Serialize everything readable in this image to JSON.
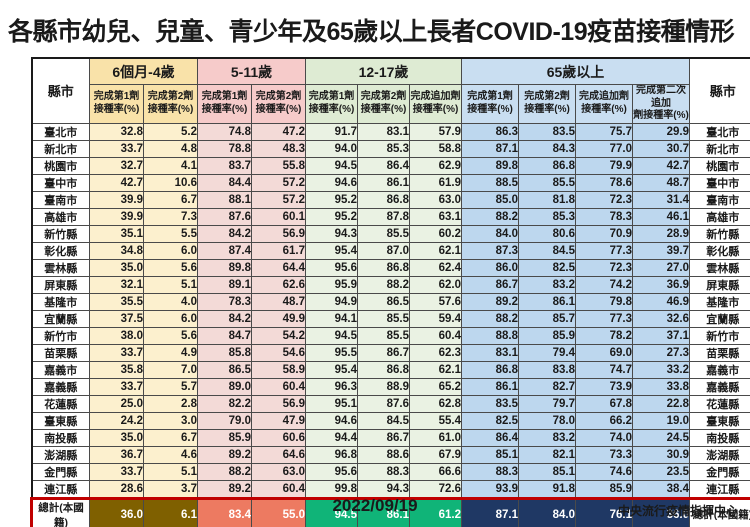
{
  "title": "各縣市幼兒、兒童、青少年及65歲以上長者COVID-19疫苗接種情形",
  "footer": {
    "date": "2022/09/19",
    "source": "中央流行疫情指揮中心"
  },
  "chart_data": {
    "type": "table",
    "title": "各縣市幼兒、兒童、青少年及65歲以上長者COVID-19疫苗接種情形",
    "corner_header": "縣市",
    "right_corner_header": "縣市",
    "col_groups": [
      {
        "label": "6個月-4歲",
        "columns": [
          "完成第1劑 接種率(%)",
          "完成第2劑 接種率(%)"
        ],
        "header_color": "#F9E2A9",
        "cell_color": "#FCF0CE",
        "total_color": "#7F6000"
      },
      {
        "label": "5-11歲",
        "columns": [
          "完成第1劑 接種率(%)",
          "完成第2劑 接種率(%)"
        ],
        "header_color": "#F6CBCA",
        "cell_color": "#F3DAD7",
        "total_color": "#ED7A61"
      },
      {
        "label": "12-17歲",
        "columns": [
          "完成第1劑 接種率(%)",
          "完成第2劑 接種率(%)",
          "完成追加劑 接種率(%)"
        ],
        "header_color": "#DEEBD3",
        "cell_color": "#EAF2E3",
        "total_color": "#10B478"
      },
      {
        "label": "65歲以上",
        "columns": [
          "完成第1劑 接種率(%)",
          "完成第2劑 接種率(%)",
          "完成追加劑 接種率(%)",
          "完成第二次追加 劑接種率(%)"
        ],
        "header_color": "#C9DEF1",
        "cell_color": "#BDD7EE",
        "total_color": "#1F3864"
      }
    ],
    "rows": [
      {
        "county": "臺北市",
        "values": [
          "32.8",
          "5.2",
          "74.8",
          "47.2",
          "91.7",
          "83.1",
          "57.9",
          "86.3",
          "83.5",
          "75.7",
          "29.9"
        ]
      },
      {
        "county": "新北市",
        "values": [
          "33.7",
          "4.8",
          "78.8",
          "48.3",
          "94.0",
          "85.3",
          "58.8",
          "87.1",
          "84.3",
          "77.0",
          "30.7"
        ]
      },
      {
        "county": "桃園市",
        "values": [
          "32.7",
          "4.1",
          "83.7",
          "55.8",
          "94.5",
          "86.4",
          "62.9",
          "89.8",
          "86.8",
          "79.9",
          "42.7"
        ]
      },
      {
        "county": "臺中市",
        "values": [
          "42.7",
          "10.6",
          "84.4",
          "57.2",
          "94.6",
          "86.1",
          "61.9",
          "88.5",
          "85.5",
          "78.6",
          "48.7"
        ]
      },
      {
        "county": "臺南市",
        "values": [
          "39.9",
          "6.7",
          "88.1",
          "57.2",
          "95.2",
          "86.8",
          "63.0",
          "85.0",
          "81.8",
          "72.3",
          "31.4"
        ]
      },
      {
        "county": "高雄市",
        "values": [
          "39.9",
          "7.3",
          "87.6",
          "60.1",
          "95.2",
          "87.8",
          "63.1",
          "88.2",
          "85.3",
          "78.3",
          "46.1"
        ]
      },
      {
        "county": "新竹縣",
        "values": [
          "35.1",
          "5.5",
          "84.2",
          "56.9",
          "94.3",
          "85.5",
          "60.2",
          "84.0",
          "80.6",
          "70.9",
          "28.9"
        ]
      },
      {
        "county": "彰化縣",
        "values": [
          "34.8",
          "6.0",
          "87.4",
          "61.7",
          "95.4",
          "87.0",
          "62.1",
          "87.3",
          "84.5",
          "77.3",
          "39.7"
        ]
      },
      {
        "county": "雲林縣",
        "values": [
          "35.0",
          "5.6",
          "89.8",
          "64.4",
          "95.6",
          "86.8",
          "62.4",
          "86.0",
          "82.5",
          "72.3",
          "27.0"
        ]
      },
      {
        "county": "屏東縣",
        "values": [
          "32.1",
          "5.1",
          "89.1",
          "62.6",
          "95.9",
          "88.2",
          "62.0",
          "86.7",
          "83.2",
          "74.2",
          "36.9"
        ]
      },
      {
        "county": "基隆市",
        "values": [
          "35.5",
          "4.0",
          "78.3",
          "48.7",
          "94.9",
          "86.5",
          "57.6",
          "89.2",
          "86.1",
          "79.8",
          "46.9"
        ]
      },
      {
        "county": "宜蘭縣",
        "values": [
          "37.5",
          "6.0",
          "84.2",
          "49.9",
          "94.1",
          "85.5",
          "59.4",
          "88.2",
          "85.7",
          "77.3",
          "32.6"
        ]
      },
      {
        "county": "新竹市",
        "values": [
          "38.0",
          "5.6",
          "84.7",
          "54.2",
          "94.5",
          "85.5",
          "60.4",
          "88.8",
          "85.9",
          "78.2",
          "37.1"
        ]
      },
      {
        "county": "苗栗縣",
        "values": [
          "33.7",
          "4.9",
          "85.8",
          "54.6",
          "95.5",
          "86.7",
          "62.3",
          "83.1",
          "79.4",
          "69.0",
          "27.3"
        ]
      },
      {
        "county": "嘉義市",
        "values": [
          "35.8",
          "7.0",
          "86.5",
          "58.9",
          "95.4",
          "86.8",
          "62.1",
          "86.8",
          "83.8",
          "74.7",
          "33.2"
        ]
      },
      {
        "county": "嘉義縣",
        "values": [
          "33.7",
          "5.7",
          "89.0",
          "60.4",
          "96.3",
          "88.9",
          "65.2",
          "86.1",
          "82.7",
          "73.9",
          "33.8"
        ]
      },
      {
        "county": "花蓮縣",
        "values": [
          "25.0",
          "2.8",
          "82.2",
          "56.9",
          "95.1",
          "87.6",
          "62.8",
          "83.5",
          "79.7",
          "67.8",
          "22.8"
        ]
      },
      {
        "county": "臺東縣",
        "values": [
          "24.2",
          "3.0",
          "79.0",
          "47.9",
          "94.6",
          "84.5",
          "55.4",
          "82.5",
          "78.0",
          "66.2",
          "19.0"
        ]
      },
      {
        "county": "南投縣",
        "values": [
          "35.0",
          "6.7",
          "85.9",
          "60.6",
          "94.4",
          "86.7",
          "61.0",
          "86.4",
          "83.2",
          "74.0",
          "24.5"
        ]
      },
      {
        "county": "澎湖縣",
        "values": [
          "36.7",
          "4.6",
          "89.2",
          "64.6",
          "96.8",
          "88.6",
          "67.9",
          "85.1",
          "82.1",
          "73.3",
          "30.9"
        ]
      },
      {
        "county": "金門縣",
        "values": [
          "33.7",
          "5.1",
          "88.2",
          "63.0",
          "95.6",
          "88.3",
          "66.6",
          "88.3",
          "85.1",
          "74.6",
          "23.5"
        ]
      },
      {
        "county": "連江縣",
        "values": [
          "28.6",
          "3.7",
          "89.2",
          "60.4",
          "99.8",
          "94.3",
          "72.6",
          "93.9",
          "91.8",
          "85.9",
          "38.4"
        ]
      }
    ],
    "total_row": {
      "label": "總計(本國籍)",
      "values": [
        "36.0",
        "6.1",
        "83.4",
        "55.0",
        "94.5",
        "86.1",
        "61.2",
        "87.1",
        "84.0",
        "76.1",
        "36.0"
      ]
    },
    "layout": {
      "total_row_border_color": "#C00000",
      "grid_color": "#4a4a4a"
    }
  }
}
